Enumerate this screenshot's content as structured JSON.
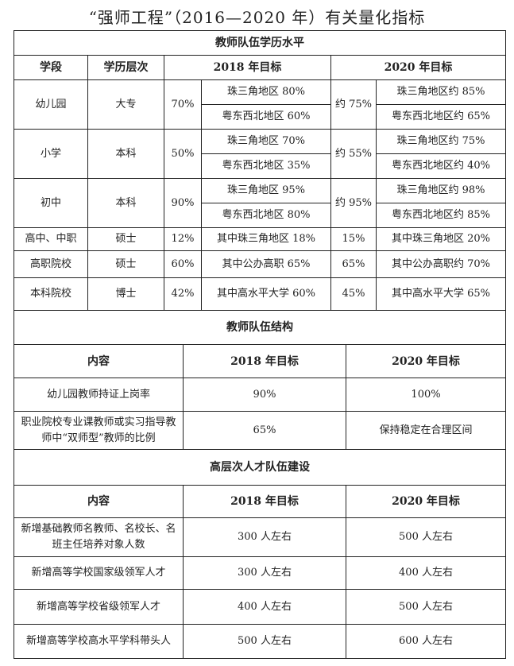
{
  "title": "“强师工程”（2016—2020 年）有关量化指标",
  "education": {
    "section_title": "教师队伍学历水平",
    "headers": [
      "学段",
      "学历层次",
      "2018 年目标",
      "2020 年目标"
    ],
    "rows": [
      {
        "stage": "幼儿园",
        "level": "大专",
        "t2018": "70%",
        "t2018_sub": [
          "珠三角地区 80%",
          "粤东西北地区 60%"
        ],
        "t2020": "约 75%",
        "t2020_sub": [
          "珠三角地区约 85%",
          "粤东西北地区约 65%"
        ]
      },
      {
        "stage": "小学",
        "level": "本科",
        "t2018": "50%",
        "t2018_sub": [
          "珠三角地区 70%",
          "粤东西北地区 35%"
        ],
        "t2020": "约 55%",
        "t2020_sub": [
          "珠三角地区约 75%",
          "粤东西北地区约 40%"
        ]
      },
      {
        "stage": "初中",
        "level": "本科",
        "t2018": "90%",
        "t2018_sub": [
          "珠三角地区 95%",
          "粤东西北地区 80%"
        ],
        "t2020": "约 95%",
        "t2020_sub": [
          "珠三角地区约 98%",
          "粤东西北地区约 85%"
        ]
      },
      {
        "stage": "高中、中职",
        "level": "硕士",
        "t2018": "12%",
        "t2018_sub": [
          "其中珠三角地区 18%"
        ],
        "t2020": "15%",
        "t2020_sub": [
          "其中珠三角地区 20%"
        ]
      },
      {
        "stage": "高职院校",
        "level": "硕士",
        "t2018": "60%",
        "t2018_sub": [
          "其中公办高职 65%"
        ],
        "t2020": "65%",
        "t2020_sub": [
          "其中公办高职约 70%"
        ]
      },
      {
        "stage": "本科院校",
        "level": "博士",
        "t2018": "42%",
        "t2018_sub": [
          "其中高水平大学 60%"
        ],
        "t2020": "45%",
        "t2020_sub": [
          "其中高水平大学 65%"
        ]
      }
    ]
  },
  "structure": {
    "section_title": "教师队伍结构",
    "headers": [
      "内容",
      "2018 年目标",
      "2020 年目标"
    ],
    "rows": [
      [
        "幼儿园教师持证上岗率",
        "90%",
        "100%"
      ],
      [
        "职业院校专业课教师或实习指导教师中“双师型”教师的比例",
        "65%",
        "保持稳定在合理区间"
      ]
    ]
  },
  "talent": {
    "section_title": "高层次人才队伍建设",
    "headers": [
      "内容",
      "2018 年目标",
      "2020 年目标"
    ],
    "rows": [
      [
        "新增基础教师名教师、名校长、名班主任培养对象人数",
        "300 人左右",
        "500 人左右"
      ],
      [
        "新增高等学校国家级领军人才",
        "300 人左右",
        "400 人左右"
      ],
      [
        "新增高等学校省级领军人才",
        "400 人左右",
        "500 人左右"
      ],
      [
        "新增高等学校高水平学科带头人",
        "500 人左右",
        "600 人左右"
      ]
    ]
  }
}
